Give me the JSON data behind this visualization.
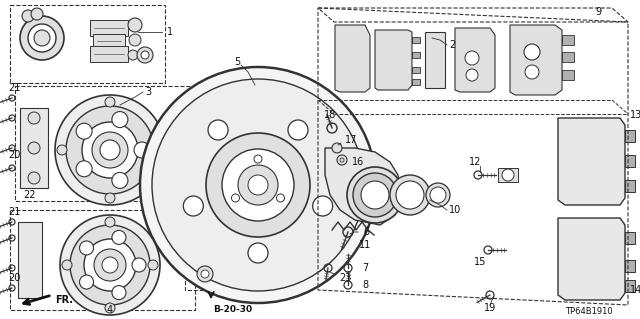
{
  "background_color": "#ffffff",
  "fig_width": 6.4,
  "fig_height": 3.19,
  "dpi": 100,
  "reference_code": "TP64B1910",
  "page_ref": "B-20-30",
  "line_color": "#333333",
  "text_color": "#111111",
  "gray_fill": "#c8c8c8",
  "light_gray": "#e0e0e0",
  "mid_gray": "#b0b0b0"
}
